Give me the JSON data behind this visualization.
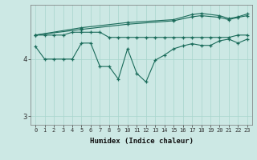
{
  "xlabel": "Humidex (Indice chaleur)",
  "bg_color": "#cce8e4",
  "plot_bg_color": "#cce8e4",
  "grid_color": "#a8d4cc",
  "line_color": "#1a6b5a",
  "xlim": [
    -0.5,
    23.5
  ],
  "ylim": [
    2.85,
    4.95
  ],
  "yticks": [
    3,
    4
  ],
  "xticks": [
    0,
    1,
    2,
    3,
    4,
    5,
    6,
    7,
    8,
    9,
    10,
    11,
    12,
    13,
    14,
    15,
    16,
    17,
    18,
    19,
    20,
    21,
    22,
    23
  ],
  "line1_x": [
    0,
    1,
    2,
    3,
    4,
    5,
    6,
    7,
    8,
    9,
    10,
    11,
    12,
    13,
    14,
    15,
    16,
    17,
    18,
    19,
    20,
    21,
    22,
    23
  ],
  "line1_y": [
    4.22,
    4.0,
    4.0,
    4.0,
    4.0,
    4.28,
    4.28,
    3.87,
    3.87,
    3.65,
    4.18,
    3.75,
    3.6,
    3.98,
    4.07,
    4.18,
    4.23,
    4.27,
    4.24,
    4.24,
    4.32,
    4.35,
    4.28,
    4.35
  ],
  "line2_x": [
    0,
    1,
    2,
    3,
    4,
    5,
    6,
    7,
    8,
    9,
    10,
    11,
    12,
    13,
    14,
    15,
    16,
    17,
    18,
    19,
    20,
    21,
    22,
    23
  ],
  "line2_y": [
    4.42,
    4.42,
    4.42,
    4.42,
    4.47,
    4.47,
    4.47,
    4.47,
    4.38,
    4.38,
    4.38,
    4.38,
    4.38,
    4.38,
    4.38,
    4.38,
    4.38,
    4.38,
    4.38,
    4.38,
    4.38,
    4.38,
    4.42,
    4.42
  ],
  "line3_x": [
    0,
    5,
    10,
    15,
    17,
    18,
    20,
    21,
    22,
    23
  ],
  "line3_y": [
    4.42,
    4.52,
    4.61,
    4.67,
    4.74,
    4.76,
    4.73,
    4.69,
    4.73,
    4.76
  ],
  "line4_x": [
    0,
    5,
    10,
    15,
    17,
    18,
    20,
    21,
    22,
    23
  ],
  "line4_y": [
    4.42,
    4.55,
    4.64,
    4.69,
    4.78,
    4.8,
    4.76,
    4.71,
    4.74,
    4.79
  ]
}
